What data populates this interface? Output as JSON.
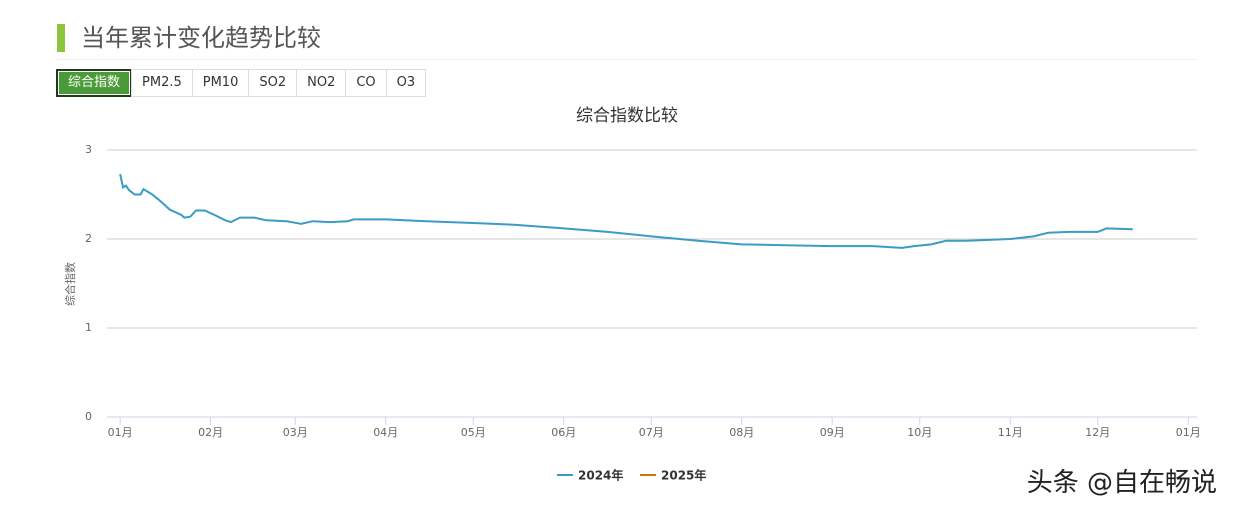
{
  "header": {
    "title": "当年累计变化趋势比较"
  },
  "tabs": [
    "综合指数",
    "PM2.5",
    "PM10",
    "SO2",
    "NO2",
    "CO",
    "O3"
  ],
  "watermark": "头条 @自在畅说",
  "chart_data": {
    "type": "line",
    "title": "综合指数比较",
    "y_label": "综合指数",
    "xlim": [
      -4.5,
      369
    ],
    "ylim": [
      0,
      3
    ],
    "yticks": [
      0,
      1,
      2,
      3
    ],
    "grid": true,
    "legend": "bottom",
    "xticks": [
      {
        "value": 0,
        "label": "01月"
      },
      {
        "value": 31,
        "label": "02月"
      },
      {
        "value": 60,
        "label": "03月"
      },
      {
        "value": 91,
        "label": "04月"
      },
      {
        "value": 121,
        "label": "05月"
      },
      {
        "value": 152,
        "label": "06月"
      },
      {
        "value": 182,
        "label": "07月"
      },
      {
        "value": 213,
        "label": "08月"
      },
      {
        "value": 244,
        "label": "09月"
      },
      {
        "value": 274,
        "label": "10月"
      },
      {
        "value": 305,
        "label": "11月"
      },
      {
        "value": 335,
        "label": "12月"
      },
      {
        "value": 366,
        "label": "01月"
      }
    ],
    "series": [
      {
        "name": "2024年",
        "color": "#3a9bc4",
        "x": [
          0,
          1,
          2,
          3,
          5,
          7,
          8,
          11,
          14,
          17,
          21,
          22,
          24,
          26,
          29,
          33,
          36,
          38,
          41,
          46,
          50,
          57,
          62,
          66,
          72,
          78,
          80,
          91,
          105,
          121,
          135,
          152,
          167,
          182,
          198,
          213,
          228,
          244,
          258,
          268,
          272,
          278,
          283,
          290,
          305,
          313,
          318,
          325,
          335,
          338,
          347
        ],
        "values": [
          2.73,
          2.58,
          2.6,
          2.55,
          2.5,
          2.5,
          2.56,
          2.5,
          2.42,
          2.33,
          2.27,
          2.24,
          2.25,
          2.32,
          2.32,
          2.26,
          2.21,
          2.19,
          2.24,
          2.24,
          2.21,
          2.2,
          2.17,
          2.2,
          2.19,
          2.2,
          2.22,
          2.22,
          2.2,
          2.18,
          2.16,
          2.12,
          2.08,
          2.03,
          1.98,
          1.94,
          1.93,
          1.92,
          1.92,
          1.9,
          1.92,
          1.94,
          1.98,
          1.98,
          2.0,
          2.03,
          2.07,
          2.08,
          2.08,
          2.12,
          2.11
        ]
      },
      {
        "name": "2025年",
        "color": "#c8760f",
        "x": [],
        "values": []
      }
    ]
  }
}
